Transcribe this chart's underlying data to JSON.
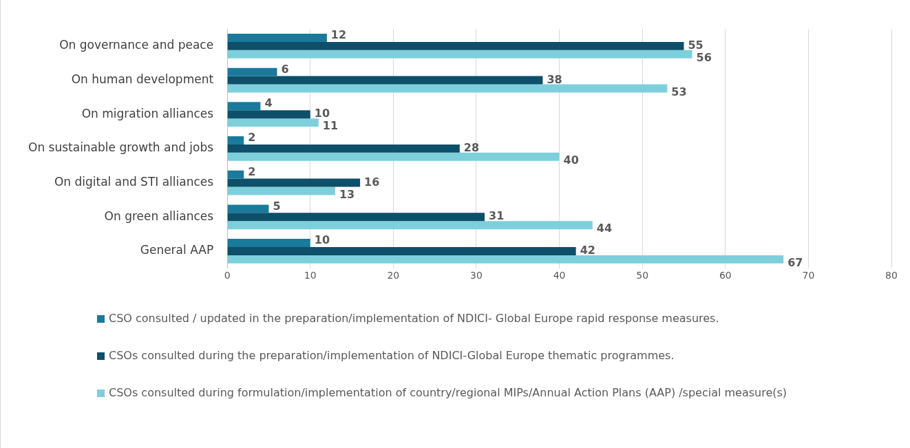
{
  "chart_data": {
    "type": "bar",
    "orientation": "horizontal",
    "categories": [
      "On governance and peace",
      "On human development",
      "On migration alliances",
      "On sustainable growth and jobs",
      "On digital and STI alliances",
      "On green alliances",
      "General AAP"
    ],
    "series": [
      {
        "name": "CSO consulted / updated in the preparation/implementation of NDICI- Global Europe rapid response measures.",
        "color": "#1a7a9c",
        "values": [
          12,
          6,
          4,
          2,
          2,
          5,
          10
        ]
      },
      {
        "name": "CSOs consulted during the preparation/implementation of NDICI-Global Europe thematic programmes.",
        "color": "#0e4f69",
        "values": [
          55,
          38,
          10,
          28,
          16,
          31,
          42
        ]
      },
      {
        "name": "CSOs consulted during formulation/implementation of country/regional MIPs/Annual Action Plans (AAP) /special measure(s)",
        "color": "#7ecfdc",
        "values": [
          56,
          53,
          11,
          40,
          13,
          44,
          67
        ]
      }
    ],
    "xlim": [
      0,
      80
    ],
    "xticks": [
      0,
      10,
      20,
      30,
      40,
      50,
      60,
      70,
      80
    ],
    "grid": "x",
    "legend": "bottom",
    "data_labels": true
  }
}
